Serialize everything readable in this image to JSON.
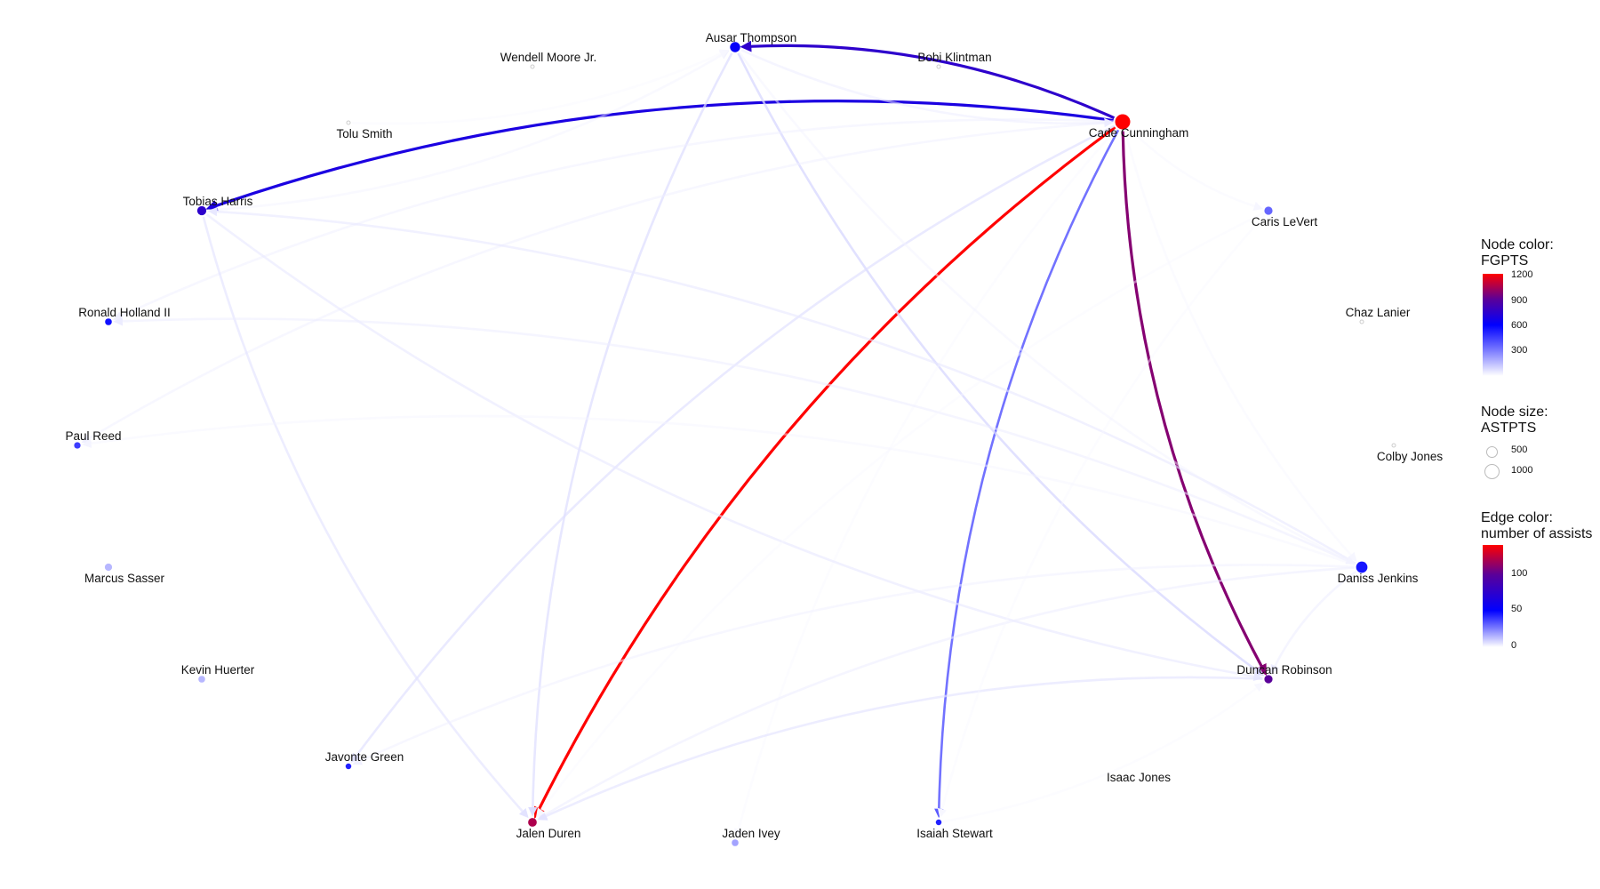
{
  "nodes": [
    {
      "name": "Ausar Thompson",
      "fgpts": 620,
      "astpts": 500
    },
    {
      "name": "Wendell Moore Jr.",
      "fgpts": 20,
      "astpts": 40
    },
    {
      "name": "Bobi Klintman",
      "fgpts": 30,
      "astpts": 40
    },
    {
      "name": "Tolu Smith",
      "fgpts": 20,
      "astpts": 50
    },
    {
      "name": "Cade Cunningham",
      "fgpts": 1200,
      "astpts": 1100
    },
    {
      "name": "Tobias Harris",
      "fgpts": 750,
      "astpts": 400
    },
    {
      "name": "Caris LeVert",
      "fgpts": 350,
      "astpts": 320
    },
    {
      "name": "Ronald Holland II",
      "fgpts": 560,
      "astpts": 220
    },
    {
      "name": "Chaz Lanier",
      "fgpts": 20,
      "astpts": 40
    },
    {
      "name": "Paul Reed",
      "fgpts": 450,
      "astpts": 200
    },
    {
      "name": "Colby Jones",
      "fgpts": 10,
      "astpts": 15
    },
    {
      "name": "Marcus Sasser",
      "fgpts": 150,
      "astpts": 260
    },
    {
      "name": "Daniss Jenkins",
      "fgpts": 550,
      "astpts": 620
    },
    {
      "name": "Kevin Huerter",
      "fgpts": 150,
      "astpts": 220
    },
    {
      "name": "Duncan Robinson",
      "fgpts": 900,
      "astpts": 320
    },
    {
      "name": "Javonte Green",
      "fgpts": 520,
      "astpts": 160
    },
    {
      "name": "Isaac Jones",
      "fgpts": 0,
      "astpts": 0
    },
    {
      "name": "Jalen Duren",
      "fgpts": 1050,
      "astpts": 360
    },
    {
      "name": "Jaden Ivey",
      "fgpts": 200,
      "astpts": 220
    },
    {
      "name": "Isaiah Stewart",
      "fgpts": 520,
      "astpts": 160
    }
  ],
  "edges": [
    {
      "from": "Cade Cunningham",
      "to": "Jalen Duren",
      "assists": 140
    },
    {
      "from": "Cade Cunningham",
      "to": "Duncan Robinson",
      "assists": 110
    },
    {
      "from": "Cade Cunningham",
      "to": "Ausar Thompson",
      "assists": 75
    },
    {
      "from": "Cade Cunningham",
      "to": "Tobias Harris",
      "assists": 65
    },
    {
      "from": "Cade Cunningham",
      "to": "Isaiah Stewart",
      "assists": 40
    },
    {
      "from": "Ausar Thompson",
      "to": "Jalen Duren",
      "assists": 22
    },
    {
      "from": "Ausar Thompson",
      "to": "Duncan Robinson",
      "assists": 25
    },
    {
      "from": "Cade Cunningham",
      "to": "Javonte Green",
      "assists": 20
    },
    {
      "from": "Cade Cunningham",
      "to": "Paul Reed",
      "assists": 10
    },
    {
      "from": "Cade Cunningham",
      "to": "Ronald Holland II",
      "assists": 10
    },
    {
      "from": "Cade Cunningham",
      "to": "Caris LeVert",
      "assists": 6
    },
    {
      "from": "Cade Cunningham",
      "to": "Jaden Ivey",
      "assists": 5
    },
    {
      "from": "Cade Cunningham",
      "to": "Daniss Jenkins",
      "assists": 6
    },
    {
      "from": "Ausar Thompson",
      "to": "Cade Cunningham",
      "assists": 12
    },
    {
      "from": "Tobias Harris",
      "to": "Jalen Duren",
      "assists": 18
    },
    {
      "from": "Tobias Harris",
      "to": "Duncan Robinson",
      "assists": 15
    },
    {
      "from": "Tobias Harris",
      "to": "Ausar Thompson",
      "assists": 8
    },
    {
      "from": "Tolu Smith",
      "to": "Ausar Thompson",
      "assists": 5
    },
    {
      "from": "Daniss Jenkins",
      "to": "Tobias Harris",
      "assists": 15
    },
    {
      "from": "Daniss Jenkins",
      "to": "Ronald Holland II",
      "assists": 12
    },
    {
      "from": "Daniss Jenkins",
      "to": "Paul Reed",
      "assists": 7
    },
    {
      "from": "Daniss Jenkins",
      "to": "Jalen Duren",
      "assists": 12
    },
    {
      "from": "Daniss Jenkins",
      "to": "Javonte Green",
      "assists": 10
    },
    {
      "from": "Daniss Jenkins",
      "to": "Duncan Robinson",
      "assists": 12
    },
    {
      "from": "Duncan Robinson",
      "to": "Jalen Duren",
      "assists": 18
    },
    {
      "from": "Isaiah Stewart",
      "to": "Duncan Robinson",
      "assists": 5
    },
    {
      "from": "Caris LeVert",
      "to": "Jalen Duren",
      "assists": 5
    },
    {
      "from": "Caris LeVert",
      "to": "Isaiah Stewart",
      "assists": 5
    },
    {
      "from": "Ausar Thompson",
      "to": "Daniss Jenkins",
      "assists": 8
    }
  ],
  "legend": {
    "node_color": {
      "title_line1": "Node color:",
      "title_line2": "FGPTS",
      "ticks": [
        "1200",
        "900",
        "600",
        "300"
      ],
      "range": [
        0,
        1200
      ]
    },
    "node_size": {
      "title_line1": "Node size:",
      "title_line2": "ASTPTS",
      "items": [
        "500",
        "1000"
      ]
    },
    "edge_color": {
      "title_line1": "Edge color:",
      "title_line2": "number of assists",
      "ticks": [
        "100",
        "50",
        "0"
      ],
      "range": [
        0,
        140
      ]
    }
  },
  "colors": {
    "low": "#f2f2ff",
    "mid_low": "#7b7bff",
    "mid": "#0000ff",
    "mid_high": "#5a0099",
    "high": "#ff0000"
  }
}
